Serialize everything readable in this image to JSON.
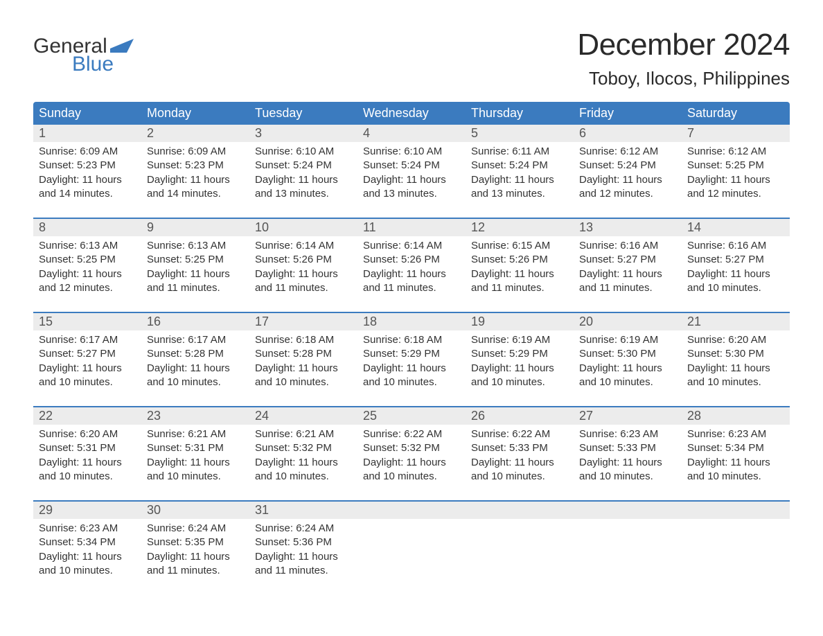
{
  "brand": {
    "top": "General",
    "bottom": "Blue",
    "top_color": "#333333",
    "bottom_color": "#3b7bbf",
    "flag_color": "#3b7bbf"
  },
  "title": "December 2024",
  "location": "Toboy, Ilocos, Philippines",
  "colors": {
    "header_bg": "#3b7bbf",
    "header_text": "#ffffff",
    "week_divider": "#3b7bbf",
    "daynum_bg": "#ececec",
    "text": "#333333",
    "background": "#ffffff"
  },
  "typography": {
    "title_fontsize": 44,
    "location_fontsize": 26,
    "header_fontsize": 18,
    "daynum_fontsize": 18,
    "body_fontsize": 15
  },
  "day_headers": [
    "Sunday",
    "Monday",
    "Tuesday",
    "Wednesday",
    "Thursday",
    "Friday",
    "Saturday"
  ],
  "weeks": [
    [
      {
        "n": "1",
        "sr": "Sunrise: 6:09 AM",
        "ss": "Sunset: 5:23 PM",
        "d1": "Daylight: 11 hours",
        "d2": "and 14 minutes."
      },
      {
        "n": "2",
        "sr": "Sunrise: 6:09 AM",
        "ss": "Sunset: 5:23 PM",
        "d1": "Daylight: 11 hours",
        "d2": "and 14 minutes."
      },
      {
        "n": "3",
        "sr": "Sunrise: 6:10 AM",
        "ss": "Sunset: 5:24 PM",
        "d1": "Daylight: 11 hours",
        "d2": "and 13 minutes."
      },
      {
        "n": "4",
        "sr": "Sunrise: 6:10 AM",
        "ss": "Sunset: 5:24 PM",
        "d1": "Daylight: 11 hours",
        "d2": "and 13 minutes."
      },
      {
        "n": "5",
        "sr": "Sunrise: 6:11 AM",
        "ss": "Sunset: 5:24 PM",
        "d1": "Daylight: 11 hours",
        "d2": "and 13 minutes."
      },
      {
        "n": "6",
        "sr": "Sunrise: 6:12 AM",
        "ss": "Sunset: 5:24 PM",
        "d1": "Daylight: 11 hours",
        "d2": "and 12 minutes."
      },
      {
        "n": "7",
        "sr": "Sunrise: 6:12 AM",
        "ss": "Sunset: 5:25 PM",
        "d1": "Daylight: 11 hours",
        "d2": "and 12 minutes."
      }
    ],
    [
      {
        "n": "8",
        "sr": "Sunrise: 6:13 AM",
        "ss": "Sunset: 5:25 PM",
        "d1": "Daylight: 11 hours",
        "d2": "and 12 minutes."
      },
      {
        "n": "9",
        "sr": "Sunrise: 6:13 AM",
        "ss": "Sunset: 5:25 PM",
        "d1": "Daylight: 11 hours",
        "d2": "and 11 minutes."
      },
      {
        "n": "10",
        "sr": "Sunrise: 6:14 AM",
        "ss": "Sunset: 5:26 PM",
        "d1": "Daylight: 11 hours",
        "d2": "and 11 minutes."
      },
      {
        "n": "11",
        "sr": "Sunrise: 6:14 AM",
        "ss": "Sunset: 5:26 PM",
        "d1": "Daylight: 11 hours",
        "d2": "and 11 minutes."
      },
      {
        "n": "12",
        "sr": "Sunrise: 6:15 AM",
        "ss": "Sunset: 5:26 PM",
        "d1": "Daylight: 11 hours",
        "d2": "and 11 minutes."
      },
      {
        "n": "13",
        "sr": "Sunrise: 6:16 AM",
        "ss": "Sunset: 5:27 PM",
        "d1": "Daylight: 11 hours",
        "d2": "and 11 minutes."
      },
      {
        "n": "14",
        "sr": "Sunrise: 6:16 AM",
        "ss": "Sunset: 5:27 PM",
        "d1": "Daylight: 11 hours",
        "d2": "and 10 minutes."
      }
    ],
    [
      {
        "n": "15",
        "sr": "Sunrise: 6:17 AM",
        "ss": "Sunset: 5:27 PM",
        "d1": "Daylight: 11 hours",
        "d2": "and 10 minutes."
      },
      {
        "n": "16",
        "sr": "Sunrise: 6:17 AM",
        "ss": "Sunset: 5:28 PM",
        "d1": "Daylight: 11 hours",
        "d2": "and 10 minutes."
      },
      {
        "n": "17",
        "sr": "Sunrise: 6:18 AM",
        "ss": "Sunset: 5:28 PM",
        "d1": "Daylight: 11 hours",
        "d2": "and 10 minutes."
      },
      {
        "n": "18",
        "sr": "Sunrise: 6:18 AM",
        "ss": "Sunset: 5:29 PM",
        "d1": "Daylight: 11 hours",
        "d2": "and 10 minutes."
      },
      {
        "n": "19",
        "sr": "Sunrise: 6:19 AM",
        "ss": "Sunset: 5:29 PM",
        "d1": "Daylight: 11 hours",
        "d2": "and 10 minutes."
      },
      {
        "n": "20",
        "sr": "Sunrise: 6:19 AM",
        "ss": "Sunset: 5:30 PM",
        "d1": "Daylight: 11 hours",
        "d2": "and 10 minutes."
      },
      {
        "n": "21",
        "sr": "Sunrise: 6:20 AM",
        "ss": "Sunset: 5:30 PM",
        "d1": "Daylight: 11 hours",
        "d2": "and 10 minutes."
      }
    ],
    [
      {
        "n": "22",
        "sr": "Sunrise: 6:20 AM",
        "ss": "Sunset: 5:31 PM",
        "d1": "Daylight: 11 hours",
        "d2": "and 10 minutes."
      },
      {
        "n": "23",
        "sr": "Sunrise: 6:21 AM",
        "ss": "Sunset: 5:31 PM",
        "d1": "Daylight: 11 hours",
        "d2": "and 10 minutes."
      },
      {
        "n": "24",
        "sr": "Sunrise: 6:21 AM",
        "ss": "Sunset: 5:32 PM",
        "d1": "Daylight: 11 hours",
        "d2": "and 10 minutes."
      },
      {
        "n": "25",
        "sr": "Sunrise: 6:22 AM",
        "ss": "Sunset: 5:32 PM",
        "d1": "Daylight: 11 hours",
        "d2": "and 10 minutes."
      },
      {
        "n": "26",
        "sr": "Sunrise: 6:22 AM",
        "ss": "Sunset: 5:33 PM",
        "d1": "Daylight: 11 hours",
        "d2": "and 10 minutes."
      },
      {
        "n": "27",
        "sr": "Sunrise: 6:23 AM",
        "ss": "Sunset: 5:33 PM",
        "d1": "Daylight: 11 hours",
        "d2": "and 10 minutes."
      },
      {
        "n": "28",
        "sr": "Sunrise: 6:23 AM",
        "ss": "Sunset: 5:34 PM",
        "d1": "Daylight: 11 hours",
        "d2": "and 10 minutes."
      }
    ],
    [
      {
        "n": "29",
        "sr": "Sunrise: 6:23 AM",
        "ss": "Sunset: 5:34 PM",
        "d1": "Daylight: 11 hours",
        "d2": "and 10 minutes."
      },
      {
        "n": "30",
        "sr": "Sunrise: 6:24 AM",
        "ss": "Sunset: 5:35 PM",
        "d1": "Daylight: 11 hours",
        "d2": "and 11 minutes."
      },
      {
        "n": "31",
        "sr": "Sunrise: 6:24 AM",
        "ss": "Sunset: 5:36 PM",
        "d1": "Daylight: 11 hours",
        "d2": "and 11 minutes."
      },
      {
        "empty": true
      },
      {
        "empty": true
      },
      {
        "empty": true
      },
      {
        "empty": true
      }
    ]
  ]
}
